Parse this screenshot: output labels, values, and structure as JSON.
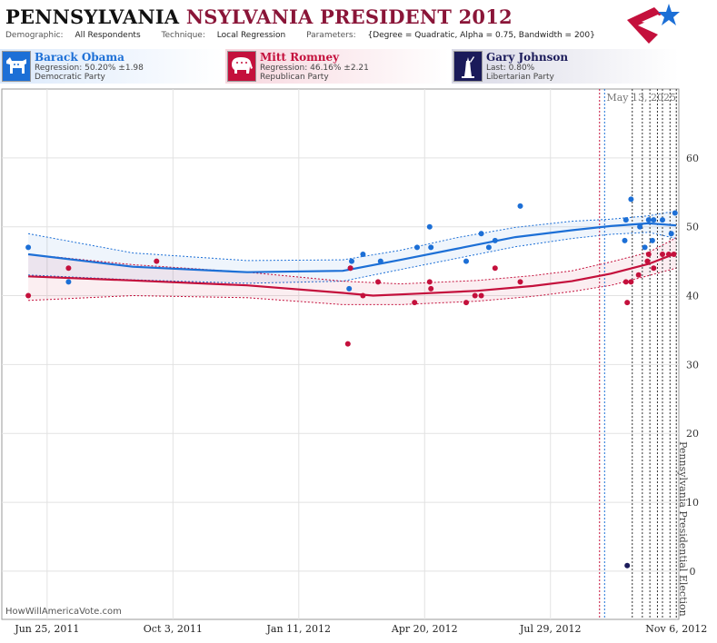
{
  "header": {
    "title_state": "PENNSYLVANIA",
    "title_sub": "NSYLVANIA PRESIDENT 2012",
    "demographic_label": "Demographic:",
    "demographic_value": "All Respondents",
    "technique_label": "Technique:",
    "technique_value": "Local Regression",
    "parameters_label": "Parameters:",
    "parameters_value": "{Degree = Quadratic, Alpha = 0.75, Bandwidth = 200}"
  },
  "candidates": [
    {
      "name": "Barack Obama",
      "line1": "Regression: 50.20% ±1.98",
      "line2": "Democratic Party",
      "color": "#1c6fd6"
    },
    {
      "name": "Mitt Romney",
      "line1": "Regression: 46.16% ±2.21",
      "line2": "Republican Party",
      "color": "#c4103c"
    },
    {
      "name": "Gary Johnson",
      "line1": "Last: 0.80%",
      "line2": "Libertarian Party",
      "color": "#1b1b5a"
    }
  ],
  "footer": {
    "site": "HowWillAmericaVote.com"
  },
  "chart_data": {
    "type": "scatter",
    "x_axis": {
      "type": "date",
      "ticks": [
        "2011-06-25",
        "2011-10-03",
        "2012-01-11",
        "2012-04-20",
        "2012-07-29",
        "2012-11-06"
      ],
      "tick_labels": [
        "Jun 25, 2011",
        "Oct 3, 2011",
        "Jan 11, 2012",
        "Apr 20, 2012",
        "Jul 29, 2012",
        "Nov 6, 2012"
      ],
      "range": [
        "2011-05-20",
        "2012-11-08"
      ]
    },
    "y_axis": {
      "range": [
        -7,
        70
      ],
      "ticks": [
        0,
        10,
        20,
        30,
        40,
        50,
        60
      ]
    },
    "grid": true,
    "date_annotation": "May 13, 2025",
    "election_label": "Pennsylvania Presidential Election",
    "vlines": [
      {
        "date": "2012-09-06",
        "color": "#c4103c"
      },
      {
        "date": "2012-09-10",
        "color": "#1c6fd6"
      },
      {
        "date": "2012-10-02",
        "color": "#333"
      },
      {
        "date": "2012-10-10",
        "color": "#333"
      },
      {
        "date": "2012-10-16",
        "color": "#333"
      },
      {
        "date": "2012-10-22",
        "color": "#333"
      },
      {
        "date": "2012-10-26",
        "color": "#333"
      },
      {
        "date": "2012-11-01",
        "color": "#333"
      },
      {
        "date": "2012-11-06",
        "color": "#333"
      }
    ],
    "series": [
      {
        "party": "dem",
        "color": "#1c6fd6",
        "points": [
          [
            "2011-06-10",
            47
          ],
          [
            "2011-07-12",
            42
          ],
          [
            "2012-02-20",
            41
          ],
          [
            "2012-02-21",
            44
          ],
          [
            "2012-02-22",
            45
          ],
          [
            "2012-03-02",
            46
          ],
          [
            "2012-03-16",
            45
          ],
          [
            "2012-04-14",
            47
          ],
          [
            "2012-04-24",
            50
          ],
          [
            "2012-04-25",
            47
          ],
          [
            "2012-05-23",
            45
          ],
          [
            "2012-06-04",
            49
          ],
          [
            "2012-06-10",
            47
          ],
          [
            "2012-06-15",
            48
          ],
          [
            "2012-07-05",
            53
          ],
          [
            "2012-09-26",
            48
          ],
          [
            "2012-09-27",
            51
          ],
          [
            "2012-10-01",
            54
          ],
          [
            "2012-10-08",
            50
          ],
          [
            "2012-10-12",
            47
          ],
          [
            "2012-10-15",
            51
          ],
          [
            "2012-10-18",
            48
          ],
          [
            "2012-10-19",
            51
          ],
          [
            "2012-10-26",
            51
          ],
          [
            "2012-11-02",
            49
          ],
          [
            "2012-11-05",
            52
          ]
        ],
        "fit": [
          [
            "2011-06-10",
            46
          ],
          [
            "2011-09-01",
            44.2
          ],
          [
            "2011-12-01",
            43.4
          ],
          [
            "2012-02-15",
            43.6
          ],
          [
            "2012-04-01",
            45.2
          ],
          [
            "2012-05-15",
            46.8
          ],
          [
            "2012-07-01",
            48.5
          ],
          [
            "2012-08-15",
            49.5
          ],
          [
            "2012-09-15",
            50.1
          ],
          [
            "2012-10-15",
            50.5
          ],
          [
            "2012-11-06",
            50.2
          ]
        ],
        "upper": [
          [
            "2011-06-10",
            49
          ],
          [
            "2011-09-01",
            46.2
          ],
          [
            "2011-12-01",
            45.1
          ],
          [
            "2012-02-15",
            45.2
          ],
          [
            "2012-04-01",
            46.6
          ],
          [
            "2012-05-15",
            48.4
          ],
          [
            "2012-07-01",
            49.9
          ],
          [
            "2012-08-15",
            50.8
          ],
          [
            "2012-09-15",
            51.1
          ],
          [
            "2012-10-15",
            51.6
          ],
          [
            "2012-11-06",
            52.3
          ]
        ],
        "lower": [
          [
            "2011-06-10",
            43
          ],
          [
            "2011-09-01",
            42.3
          ],
          [
            "2011-12-01",
            41.8
          ],
          [
            "2012-02-15",
            42.1
          ],
          [
            "2012-04-01",
            43.8
          ],
          [
            "2012-05-15",
            45.4
          ],
          [
            "2012-07-01",
            47.1
          ],
          [
            "2012-08-15",
            48.3
          ],
          [
            "2012-09-15",
            48.9
          ],
          [
            "2012-10-15",
            49.2
          ],
          [
            "2012-11-06",
            48.3
          ]
        ]
      },
      {
        "party": "rep",
        "color": "#c4103c",
        "points": [
          [
            "2011-06-10",
            40
          ],
          [
            "2011-07-12",
            44
          ],
          [
            "2011-09-20",
            45
          ],
          [
            "2012-02-19",
            33
          ],
          [
            "2012-02-21",
            44
          ],
          [
            "2012-03-02",
            40
          ],
          [
            "2012-03-14",
            42
          ],
          [
            "2012-04-12",
            39
          ],
          [
            "2012-04-24",
            42
          ],
          [
            "2012-04-25",
            41
          ],
          [
            "2012-05-23",
            39
          ],
          [
            "2012-05-30",
            40
          ],
          [
            "2012-06-04",
            40
          ],
          [
            "2012-06-15",
            44
          ],
          [
            "2012-07-05",
            42
          ],
          [
            "2012-09-27",
            42
          ],
          [
            "2012-09-28",
            39
          ],
          [
            "2012-10-01",
            42
          ],
          [
            "2012-10-07",
            43
          ],
          [
            "2012-10-14",
            45
          ],
          [
            "2012-10-15",
            46
          ],
          [
            "2012-10-19",
            44
          ],
          [
            "2012-10-26",
            46
          ],
          [
            "2012-10-31",
            46
          ],
          [
            "2012-11-04",
            46
          ]
        ],
        "fit": [
          [
            "2011-06-10",
            42.8
          ],
          [
            "2011-09-01",
            42.2
          ],
          [
            "2011-12-01",
            41.5
          ],
          [
            "2012-02-15",
            40.4
          ],
          [
            "2012-03-10",
            40
          ],
          [
            "2012-04-15",
            40.3
          ],
          [
            "2012-06-01",
            40.7
          ],
          [
            "2012-07-15",
            41.4
          ],
          [
            "2012-08-15",
            42.1
          ],
          [
            "2012-09-15",
            43.2
          ],
          [
            "2012-10-15",
            44.6
          ],
          [
            "2012-11-06",
            46.16
          ]
        ],
        "upper": [
          [
            "2011-06-10",
            46
          ],
          [
            "2011-09-01",
            44.5
          ],
          [
            "2011-12-01",
            43.4
          ],
          [
            "2012-02-15",
            42.1
          ],
          [
            "2012-04-01",
            41.7
          ],
          [
            "2012-06-01",
            42.2
          ],
          [
            "2012-07-15",
            42.9
          ],
          [
            "2012-08-15",
            43.6
          ],
          [
            "2012-09-15",
            44.9
          ],
          [
            "2012-10-15",
            46.3
          ],
          [
            "2012-11-06",
            48.4
          ]
        ],
        "lower": [
          [
            "2011-06-10",
            39.3
          ],
          [
            "2011-09-01",
            40
          ],
          [
            "2011-12-01",
            39.7
          ],
          [
            "2012-02-15",
            38.7
          ],
          [
            "2012-04-01",
            38.7
          ],
          [
            "2012-06-01",
            39.2
          ],
          [
            "2012-07-15",
            39.9
          ],
          [
            "2012-08-15",
            40.6
          ],
          [
            "2012-09-15",
            41.5
          ],
          [
            "2012-10-15",
            42.9
          ],
          [
            "2012-11-06",
            44
          ]
        ]
      },
      {
        "party": "lib",
        "color": "#1b1b5a",
        "points": [
          [
            "2012-09-28",
            0.8
          ]
        ]
      }
    ]
  }
}
